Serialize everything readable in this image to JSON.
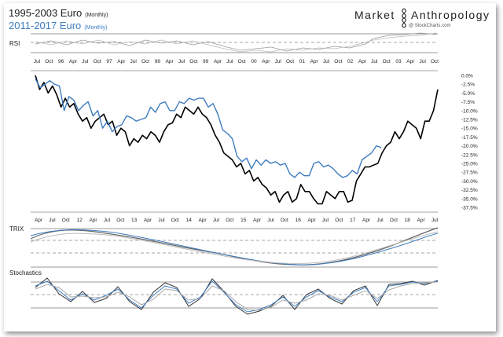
{
  "header": {
    "title1": "1995-2003 Euro",
    "title1_sub": "(Monthly)",
    "title2": "2011-2017  Euro",
    "title2_sub": "(Monthly)",
    "brand_left": "Market",
    "brand_right": "Anthropology",
    "brand_sub": "@ StockCharts.com"
  },
  "panels": {
    "rsi_label": "RSI",
    "trix_label": "TRIX",
    "stoch_label": "Stochastics"
  },
  "colors": {
    "series_1995": "#000000",
    "series_2011": "#3f7cc0",
    "indicator_grey": "#9a9a9a"
  },
  "chart_data": {
    "type": "line",
    "title": "1995-2003 Euro (Monthly) / 2011-2017 Euro (Monthly)",
    "top_axis_labels": [
      "Jul",
      "Oct",
      "96",
      "Apr",
      "Jul",
      "Oct",
      "97",
      "Apr",
      "Jul",
      "Oct",
      "98",
      "Apr",
      "Jul",
      "Oct",
      "99",
      "Apr",
      "Jul",
      "Oct",
      "00",
      "Apr",
      "Jul",
      "Oct",
      "01",
      "Apr",
      "Jul",
      "Oct",
      "02",
      "Apr",
      "Jul",
      "Oct",
      "03",
      "Apr",
      "Jul",
      "Oct"
    ],
    "bottom_axis_labels": [
      "Apr",
      "Jul",
      "Oct",
      "12",
      "Apr",
      "Jul",
      "Oct",
      "13",
      "Apr",
      "Jul",
      "Oct",
      "14",
      "Apr",
      "Jul",
      "Oct",
      "15",
      "Apr",
      "Jul",
      "Oct",
      "16",
      "Apr",
      "Jul",
      "Oct",
      "17",
      "Apr",
      "Jul",
      "Oct",
      "18",
      "Apr",
      "Jul"
    ],
    "y_axis_labels": [
      "0.0%",
      "-2.5%",
      "-5.0%",
      "-7.5%",
      "-10.0%",
      "-12.5%",
      "-15.0%",
      "-17.5%",
      "-20.0%",
      "-22.5%",
      "-25.0%",
      "-27.5%",
      "-30.0%",
      "-32.5%",
      "-35.0%",
      "-37.5%"
    ],
    "ylim": [
      -37.5,
      0
    ],
    "series": [
      {
        "name": "1995-2003 Euro",
        "values": [
          0,
          -4,
          -2,
          -5,
          -3,
          -5.5,
          -9,
          -6.5,
          -9,
          -8,
          -11,
          -13,
          -12,
          -15,
          -13,
          -12,
          -11,
          -14,
          -13,
          -17,
          -15,
          -16,
          -20,
          -18,
          -19,
          -17,
          -18,
          -16,
          -17,
          -19,
          -16,
          -14,
          -13.5,
          -11,
          -12,
          -9,
          -10,
          -11,
          -9,
          -11,
          -12,
          -14,
          -17,
          -19,
          -22,
          -23,
          -24,
          -26,
          -25,
          -28,
          -27,
          -30,
          -29,
          -31,
          -32,
          -34,
          -33,
          -36,
          -34,
          -33,
          -36,
          -35,
          -31,
          -33,
          -33,
          -35,
          -36.5,
          -36.5,
          -33,
          -34,
          -35,
          -33,
          -33,
          -36,
          -35.5,
          -30,
          -28,
          -26,
          -26,
          -25.5,
          -25,
          -22,
          -20,
          -19,
          -16,
          -18,
          -16,
          -13,
          -14,
          -15,
          -18,
          -13,
          -13,
          -10,
          -4
        ]
      },
      {
        "name": "2011-2017 Euro",
        "values": [
          -1,
          -3.5,
          -2.5,
          -1.5,
          -2.5,
          -3,
          -10,
          -6,
          -7,
          -10,
          -8.5,
          -7.5,
          -11.5,
          -10,
          -15,
          -13,
          -16,
          -14.5,
          -14,
          -11.5,
          -12,
          -13,
          -12.5,
          -12,
          -9,
          -10.5,
          -8,
          -7.5,
          -10,
          -10,
          -7.5,
          -8,
          -6.5,
          -7,
          -6.5,
          -6.5,
          -9,
          -8,
          -11,
          -15.5,
          -16.5,
          -18,
          -23,
          -24.5,
          -23.5,
          -26.5,
          -24,
          -25.5,
          -24,
          -25,
          -24.5,
          -25.5,
          -25,
          -28,
          -29,
          -27.5,
          -28.5,
          -28.5,
          -25,
          -24.5,
          -26,
          -25.5,
          -26.5,
          -28,
          -29,
          -28.5,
          -27,
          -28,
          -24,
          -23,
          -22,
          -20,
          -20.5
        ]
      }
    ]
  }
}
